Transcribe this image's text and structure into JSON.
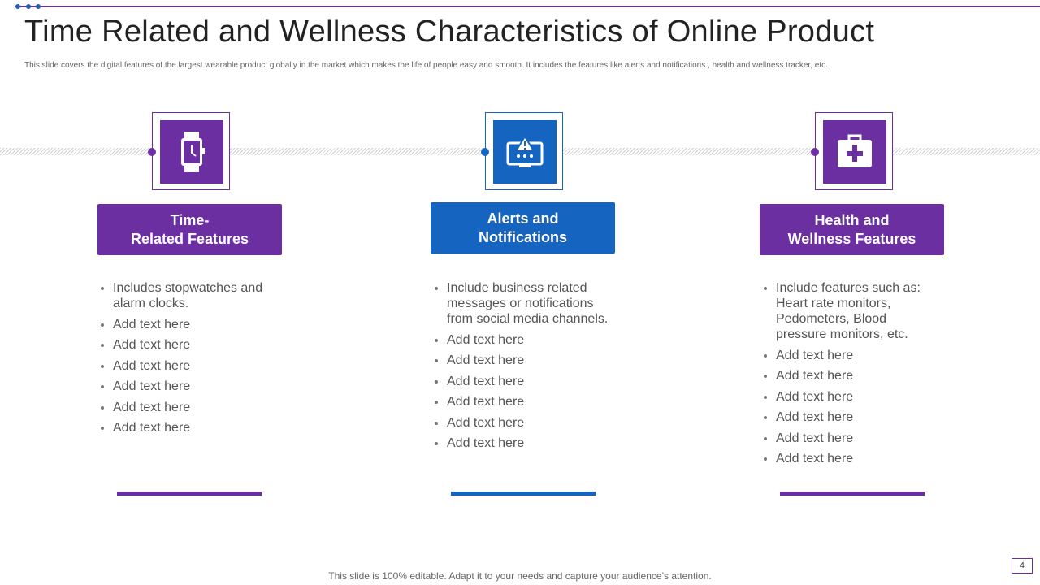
{
  "header": {
    "title": "Time Related and Wellness Characteristics of Online Product",
    "subtitle": "This slide covers the digital features of the largest wearable product globally in the market which makes the life of people easy and smooth. It includes the features like alerts and notifications , health  and wellness tracker, etc."
  },
  "cards": [
    {
      "title_lines": [
        "Time-",
        "Related Features"
      ],
      "bullets": [
        "Includes stopwatches and alarm clocks.",
        "Add text here",
        "Add text here",
        "Add text here",
        "Add text here",
        "Add text here",
        "Add text here"
      ]
    },
    {
      "title_lines": [
        "Alerts and",
        "Notifications"
      ],
      "bullets": [
        "Include business related messages or notifications from social media channels.",
        "Add text here",
        "Add text here",
        "Add text here",
        "Add text here",
        "Add text here",
        "Add text here"
      ]
    },
    {
      "title_lines": [
        "Health and",
        "Wellness Features"
      ],
      "bullets": [
        "Include features such as: Heart rate monitors, Pedometers, Blood pressure monitors, etc.",
        "Add text here",
        "Add text here",
        "Add text here",
        "Add text here",
        "Add text here",
        "Add text here"
      ]
    }
  ],
  "footer": {
    "text": "This slide is 100% editable. Adapt it to your needs and capture your audience’s attention.",
    "page_number": "4"
  }
}
